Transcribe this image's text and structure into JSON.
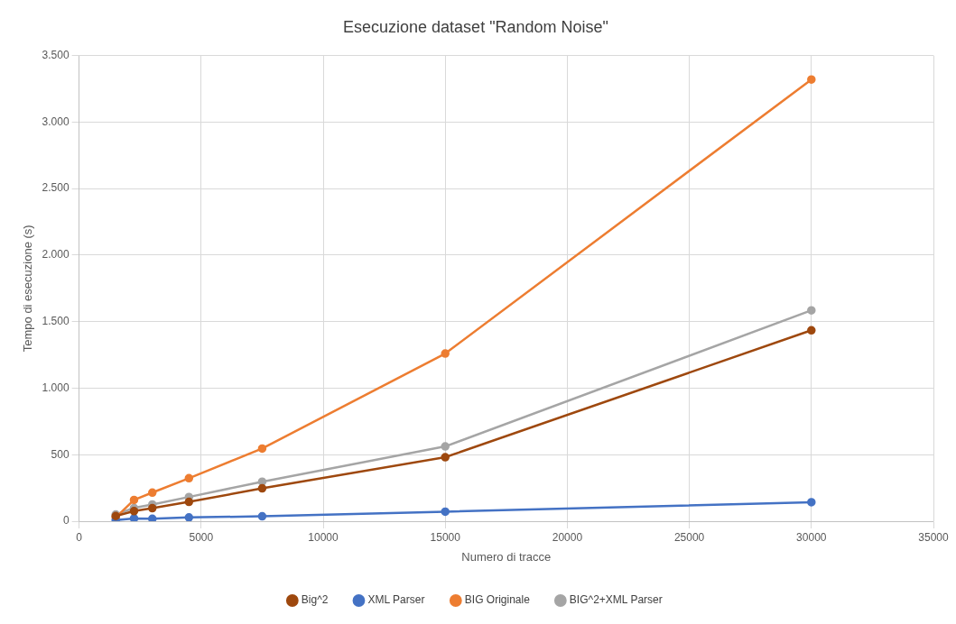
{
  "chart_data": {
    "type": "line",
    "title": "Esecuzione dataset \"Random Noise\"",
    "xlabel": "Numero di tracce",
    "ylabel": "Tempo di esecuzione (s)",
    "x": [
      1500,
      2250,
      3000,
      4500,
      7500,
      15000,
      30000
    ],
    "series": [
      {
        "name": "Big^2",
        "color": "#9e480e",
        "values": [
          39,
          76,
          98,
          145,
          247,
          481,
          1435
        ]
      },
      {
        "name": "XML Parser",
        "color": "#4472c4",
        "values": [
          8,
          21,
          18,
          28,
          37,
          72,
          143
        ]
      },
      {
        "name": "BIG Originale",
        "color": "#ed7d31",
        "values": [
          28,
          160,
          215,
          323,
          546,
          1260,
          3320
        ]
      },
      {
        "name": "BIG^2+XML Parser",
        "color": "#a5a5a5",
        "values": [
          50,
          100,
          126,
          182,
          297,
          562,
          1585
        ]
      }
    ],
    "xlim": [
      0,
      35000
    ],
    "xticks": [
      0,
      5000,
      10000,
      15000,
      20000,
      25000,
      30000,
      35000
    ],
    "ylim": [
      0,
      3500
    ],
    "yticks": [
      0,
      500,
      {
        "value": 1000,
        "label": "1.000"
      },
      {
        "value": 1500,
        "label": "1.500"
      },
      {
        "value": 2000,
        "label": "2.000"
      },
      {
        "value": 2500,
        "label": "2.500"
      },
      {
        "value": 3000,
        "label": "3.000"
      },
      {
        "value": 3500,
        "label": "3.500"
      }
    ],
    "grid": true,
    "legend": "bottom",
    "marker": "circle",
    "line_style": "solid"
  }
}
